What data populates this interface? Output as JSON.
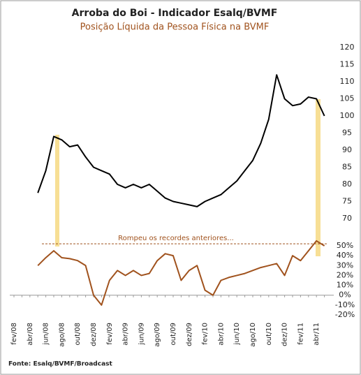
{
  "chart_data": {
    "type": "line",
    "title": "Arroba do Boi - Indicador Esalq/BVMF",
    "subtitle": "Posição Líquida da Pessoa Física na BVMF",
    "source": "Fonte: Esalq/BVMF/Broadcast",
    "annotation": "Rompeu os recordes anteriores...",
    "reference_line": 52,
    "categories": [
      "fev/08",
      null,
      "abr/08",
      null,
      "jun/08",
      null,
      "ago/08",
      null,
      "out/08",
      null,
      "dez/08",
      null,
      "fev/09",
      null,
      "abr/09",
      null,
      "jun/09",
      null,
      "ago/09",
      null,
      "out/09",
      null,
      "dez/09",
      null,
      "fev/10",
      null,
      "abr/10",
      null,
      "jun/10",
      null,
      "ago/10",
      null,
      "out/10",
      null,
      "dez/10",
      null,
      "fev/11",
      null,
      "abr/11",
      null
    ],
    "series": [
      {
        "name": "Arroba do Boi",
        "color": "#000000",
        "values": [
          null,
          null,
          null,
          77.5,
          84,
          94,
          93,
          91,
          91.5,
          88,
          85,
          84,
          83,
          80,
          79,
          80,
          79,
          80,
          78,
          76,
          75,
          74.5,
          74,
          73.5,
          75,
          76,
          77,
          79,
          81,
          84,
          87,
          92,
          99,
          112,
          105,
          103,
          103.5,
          105.5,
          105,
          100
        ]
      },
      {
        "name": "Posição Líquida da Pessoa Física",
        "color": "#a0521d",
        "axis": "y2",
        "values": [
          null,
          null,
          null,
          30,
          38,
          45,
          38,
          37,
          35,
          30,
          0,
          -10,
          15,
          25,
          20,
          25,
          20,
          22,
          35,
          42,
          40,
          15,
          25,
          30,
          5,
          0,
          15,
          18,
          20,
          22,
          25,
          28,
          30,
          32,
          20,
          40,
          35,
          45,
          55,
          50
        ]
      }
    ],
    "ylim": [
      70,
      120
    ],
    "yticks": [
      70,
      75,
      80,
      85,
      90,
      95,
      100,
      105,
      110,
      115,
      120
    ],
    "y2lim": [
      -20,
      50
    ],
    "y2ticks": [
      {
        "value": -20,
        "label": "-20%"
      },
      {
        "value": -10,
        "label": "-10%"
      },
      {
        "value": 0,
        "label": "0%"
      },
      {
        "value": 10,
        "label": "10%"
      },
      {
        "value": 20,
        "label": "20%"
      },
      {
        "value": 30,
        "label": "30%"
      },
      {
        "value": 40,
        "label": "40%"
      },
      {
        "value": 50,
        "label": "50%"
      }
    ]
  }
}
